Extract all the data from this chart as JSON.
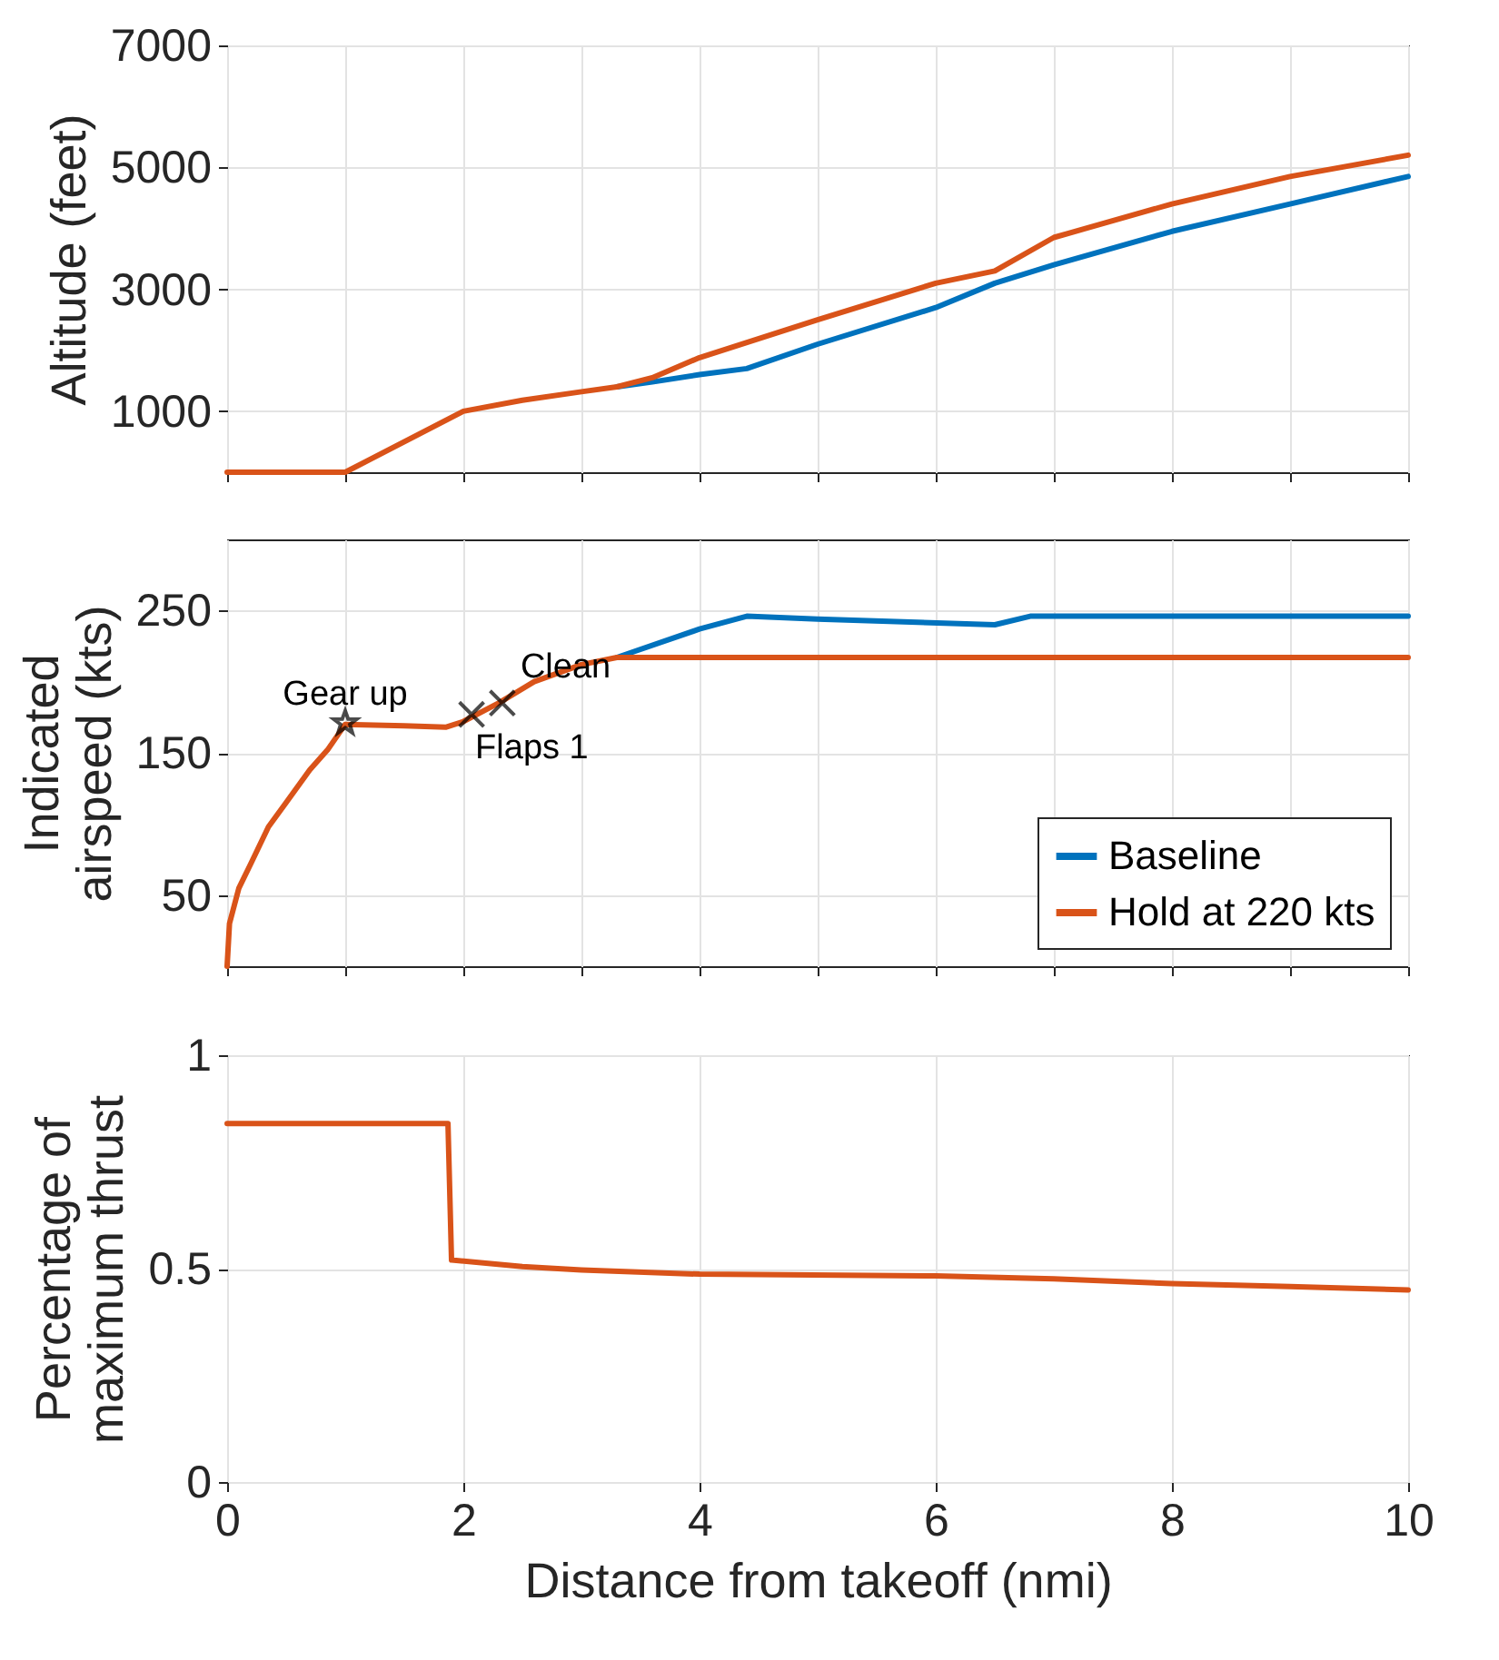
{
  "chart_data": [
    {
      "type": "line",
      "ylabel": "Altitude (feet)",
      "xlim": [
        0,
        10
      ],
      "xticks": [
        0,
        1,
        2,
        3,
        4,
        5,
        6,
        7,
        8,
        9,
        10
      ],
      "ylim": [
        0,
        7000
      ],
      "yticks": [
        1000,
        3000,
        5000,
        7000
      ],
      "grid": true,
      "tick_labels": "y",
      "series": [
        {
          "color": "#0072bd",
          "x": [
            3.3,
            3.6,
            4,
            4.4,
            5,
            6,
            6.5,
            7,
            8,
            9,
            10
          ],
          "values": [
            1400,
            1480,
            1600,
            1700,
            2100,
            2700,
            3100,
            3400,
            3950,
            4400,
            4850
          ]
        },
        {
          "color": "#d95319",
          "x": [
            0,
            1,
            2,
            2.5,
            3,
            3.3,
            3.6,
            4,
            5,
            6,
            6.5,
            7,
            8,
            9,
            10
          ],
          "values": [
            0,
            0,
            1000,
            1180,
            1320,
            1400,
            1550,
            1880,
            2500,
            3100,
            3300,
            3850,
            4400,
            4850,
            5200
          ]
        }
      ]
    },
    {
      "type": "line",
      "ylabel": "Indicated\nairspeed (kts)",
      "xlim": [
        0,
        10
      ],
      "xticks": [
        0,
        1,
        2,
        3,
        4,
        5,
        6,
        7,
        8,
        9,
        10
      ],
      "ylim": [
        0,
        300
      ],
      "yticks": [
        50,
        150,
        250
      ],
      "grid": true,
      "tick_labels": "y",
      "legend": "bottom right",
      "annotations": [
        {
          "text": "Gear up",
          "x": 1,
          "y": 171
        },
        {
          "text": "Flaps 1",
          "x": 2.07,
          "y": 177
        },
        {
          "text": "Clean",
          "x": 2.33,
          "y": 185
        }
      ],
      "series": [
        {
          "name": "Baseline",
          "color": "#0072bd",
          "x": [
            3.3,
            4,
            4.4,
            5,
            6.5,
            6.8,
            10
          ],
          "values": [
            217,
            237,
            246,
            244,
            240,
            246,
            246
          ]
        },
        {
          "name": "Hold at 220 kts",
          "color": "#d95319",
          "x": [
            0,
            0.02,
            0.1,
            0.2,
            0.35,
            0.5,
            0.7,
            0.85,
            1,
            1.5,
            1.85,
            2,
            2.3,
            2.6,
            3,
            3.3,
            10
          ],
          "values": [
            0,
            30,
            55,
            72,
            98,
            115,
            138,
            152,
            170,
            169,
            168,
            172,
            185,
            200,
            212,
            217,
            217
          ]
        },
        {
          "type": "scatter",
          "marker": "star",
          "color": "#000000",
          "x": [
            1
          ],
          "values": [
            171
          ]
        },
        {
          "type": "scatter",
          "marker": "cross",
          "color": "#000000",
          "x": [
            2.07,
            2.33
          ],
          "values": [
            177,
            185
          ]
        }
      ]
    },
    {
      "type": "line",
      "xlabel": "Distance from takeoff (nmi)",
      "ylabel": "Percentage of\nmaximum thrust",
      "xlim": [
        0,
        10
      ],
      "xticks": [
        0,
        2,
        4,
        6,
        8,
        10
      ],
      "ylim": [
        0,
        1
      ],
      "yticks": [
        0,
        0.5,
        1
      ],
      "grid": true,
      "series": [
        {
          "color": "#d95319",
          "x": [
            0,
            1.87,
            1.9,
            2.5,
            3,
            4,
            6,
            7,
            8,
            9,
            10
          ],
          "values": [
            0.84,
            0.84,
            0.52,
            0.505,
            0.497,
            0.487,
            0.483,
            0.476,
            0.465,
            0.458,
            0.45
          ]
        }
      ]
    }
  ]
}
